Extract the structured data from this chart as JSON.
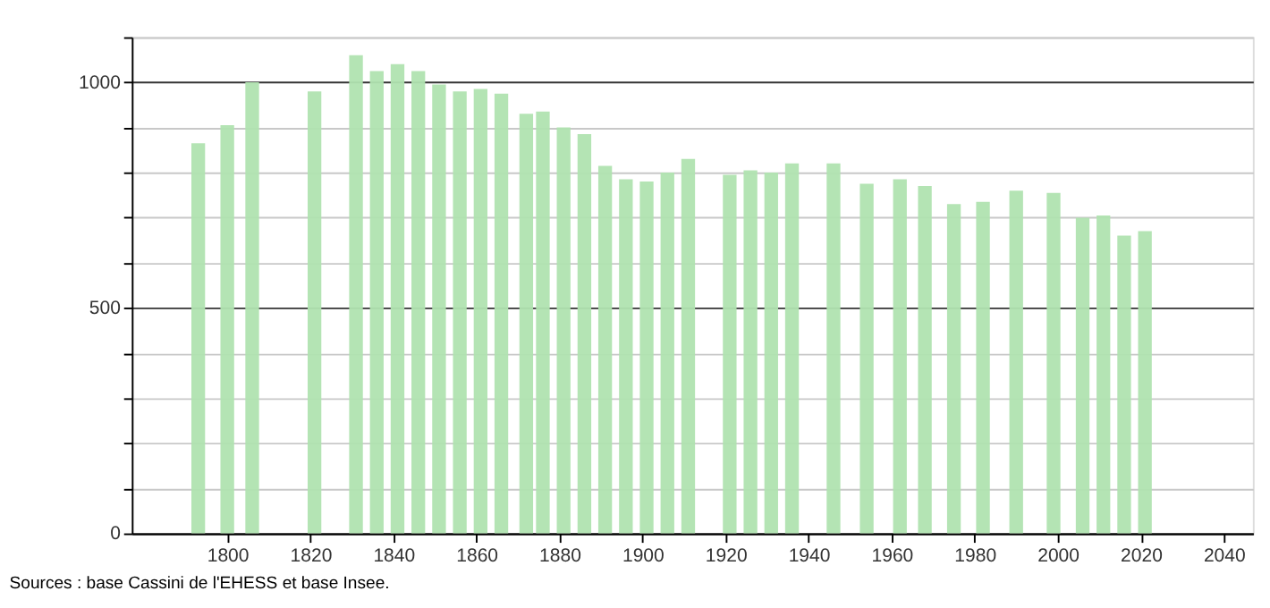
{
  "chart_data": {
    "type": "bar",
    "x": [
      1793,
      1800,
      1806,
      1821,
      1831,
      1836,
      1841,
      1846,
      1851,
      1856,
      1861,
      1866,
      1872,
      1876,
      1881,
      1886,
      1891,
      1896,
      1901,
      1906,
      1911,
      1921,
      1926,
      1931,
      1936,
      1946,
      1954,
      1962,
      1968,
      1975,
      1982,
      1990,
      1999,
      2006,
      2011,
      2016,
      2021
    ],
    "values": [
      865,
      905,
      1000,
      980,
      1060,
      1025,
      1040,
      1025,
      995,
      980,
      985,
      975,
      930,
      935,
      900,
      885,
      815,
      785,
      780,
      800,
      830,
      795,
      805,
      800,
      820,
      820,
      775,
      785,
      770,
      730,
      735,
      760,
      755,
      700,
      705,
      660,
      670
    ],
    "color": "#b0e3b0",
    "xlim": [
      1777,
      2047
    ],
    "xticks": [
      1800,
      1820,
      1840,
      1860,
      1880,
      1900,
      1920,
      1940,
      1960,
      1980,
      2000,
      2020,
      2040
    ],
    "ylim": [
      0,
      1100
    ],
    "yticks": [
      0,
      {
        "value": 100,
        "label": null
      },
      {
        "value": 200,
        "label": null
      },
      {
        "value": 300,
        "label": null
      },
      {
        "value": 400,
        "label": null
      },
      500,
      {
        "value": 600,
        "label": null
      },
      {
        "value": 700,
        "label": null
      },
      {
        "value": 800,
        "label": null
      },
      {
        "value": 900,
        "label": null
      },
      1000,
      {
        "value": 1100,
        "label": null
      }
    ],
    "grid": "y",
    "annotations": [
      "Sources : base Cassini de l'EHESS et base Insee."
    ]
  }
}
